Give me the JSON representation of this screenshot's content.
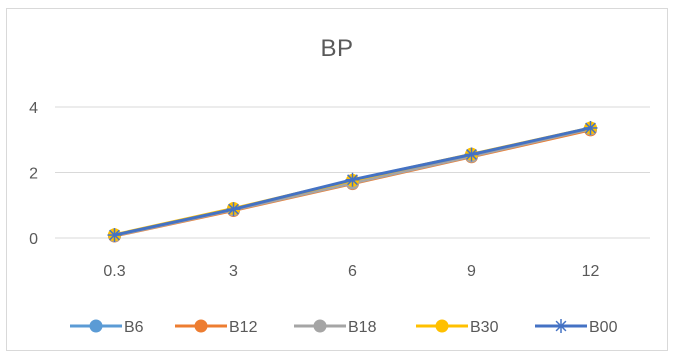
{
  "chart_data": {
    "type": "line",
    "title": "BP",
    "categories": [
      "0.3",
      "3",
      "6",
      "9",
      "12"
    ],
    "y_ticks": [
      "0",
      "2",
      "4"
    ],
    "ylim": [
      0,
      4
    ],
    "grid": true,
    "legend_position": "bottom",
    "series": [
      {
        "name": "B6",
        "color": "#5b9bd5",
        "marker": "circle",
        "values": [
          0.08,
          0.88,
          1.7,
          2.53,
          3.33
        ]
      },
      {
        "name": "B12",
        "color": "#ed7d31",
        "marker": "circle",
        "values": [
          0.06,
          0.84,
          1.66,
          2.48,
          3.3
        ]
      },
      {
        "name": "B18",
        "color": "#a5a5a5",
        "marker": "circle",
        "values": [
          0.07,
          0.86,
          1.68,
          2.5,
          3.33
        ]
      },
      {
        "name": "B30",
        "color": "#ffc000",
        "marker": "circle",
        "values": [
          0.1,
          0.9,
          1.76,
          2.56,
          3.36
        ]
      },
      {
        "name": "B00",
        "color": "#4472c4",
        "marker": "asterisk",
        "values": [
          0.09,
          0.88,
          1.78,
          2.55,
          3.36
        ]
      }
    ]
  }
}
